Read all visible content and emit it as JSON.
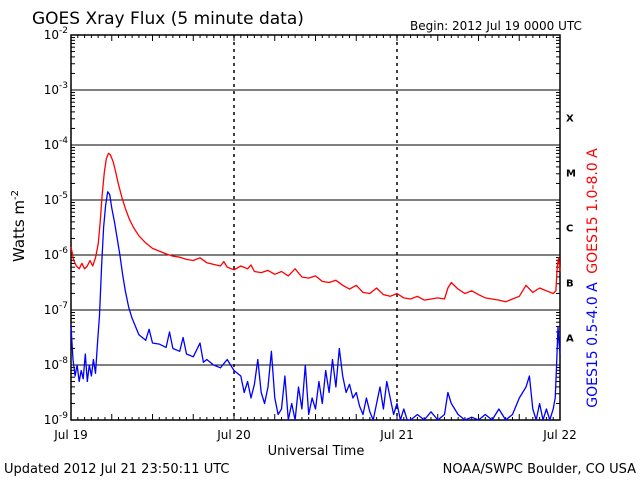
{
  "chart_data": {
    "type": "line",
    "title": "GOES Xray Flux (5 minute data)",
    "begin_label": "Begin:  2012 Jul 19 0000 UTC",
    "xlabel": "Universal Time",
    "ylabel": "Watts m",
    "ylabel_sup": "-2",
    "y_scale": "log",
    "ylim": [
      1e-09,
      0.01
    ],
    "xlim": [
      0,
      72
    ],
    "x_unit": "hours since 2012 Jul 19 0000 UTC",
    "x_ticks": [
      {
        "x": 0,
        "label": "Jul 19"
      },
      {
        "x": 24,
        "label": "Jul 20"
      },
      {
        "x": 48,
        "label": "Jul 21"
      },
      {
        "x": 72,
        "label": "Jul 22"
      }
    ],
    "y_ticks": [
      {
        "exp": -9,
        "base": "10",
        "sup": "-9"
      },
      {
        "exp": -8,
        "base": "10",
        "sup": "-8"
      },
      {
        "exp": -7,
        "base": "10",
        "sup": "-7"
      },
      {
        "exp": -6,
        "base": "10",
        "sup": "-6"
      },
      {
        "exp": -5,
        "base": "10",
        "sup": "-5"
      },
      {
        "exp": -4,
        "base": "10",
        "sup": "-4"
      },
      {
        "exp": -3,
        "base": "10",
        "sup": "-3"
      },
      {
        "exp": -2,
        "base": "10",
        "sup": "-2"
      }
    ],
    "flare_classes": [
      {
        "label": "A",
        "exp": -7.5
      },
      {
        "label": "B",
        "exp": -6.5
      },
      {
        "label": "C",
        "exp": -5.5
      },
      {
        "label": "M",
        "exp": -4.5
      },
      {
        "label": "X",
        "exp": -3.5
      }
    ],
    "series": [
      {
        "name": "GOES15 1.0-8.0 A",
        "color": "#ff0000",
        "points": [
          [
            0.0,
            -5.85
          ],
          [
            0.4,
            -6.1
          ],
          [
            0.8,
            -6.2
          ],
          [
            1.2,
            -6.25
          ],
          [
            1.6,
            -6.15
          ],
          [
            2.0,
            -6.25
          ],
          [
            2.4,
            -6.2
          ],
          [
            2.8,
            -6.1
          ],
          [
            3.2,
            -6.2
          ],
          [
            3.6,
            -6.05
          ],
          [
            4.0,
            -5.8
          ],
          [
            4.3,
            -5.4
          ],
          [
            4.6,
            -4.9
          ],
          [
            4.9,
            -4.5
          ],
          [
            5.2,
            -4.25
          ],
          [
            5.5,
            -4.15
          ],
          [
            5.8,
            -4.18
          ],
          [
            6.2,
            -4.3
          ],
          [
            6.6,
            -4.5
          ],
          [
            7.0,
            -4.72
          ],
          [
            7.5,
            -4.95
          ],
          [
            8.0,
            -5.15
          ],
          [
            8.6,
            -5.35
          ],
          [
            9.2,
            -5.5
          ],
          [
            10.0,
            -5.65
          ],
          [
            11.0,
            -5.78
          ],
          [
            12.0,
            -5.88
          ],
          [
            13.0,
            -5.93
          ],
          [
            14.0,
            -5.98
          ],
          [
            15.0,
            -6.02
          ],
          [
            16.0,
            -6.04
          ],
          [
            17.0,
            -6.08
          ],
          [
            18.0,
            -6.1
          ],
          [
            19.0,
            -6.05
          ],
          [
            20.0,
            -6.14
          ],
          [
            21.0,
            -6.17
          ],
          [
            22.0,
            -6.2
          ],
          [
            22.5,
            -6.12
          ],
          [
            23.0,
            -6.22
          ],
          [
            24.0,
            -6.27
          ],
          [
            25.0,
            -6.2
          ],
          [
            26.0,
            -6.25
          ],
          [
            26.5,
            -6.18
          ],
          [
            27.0,
            -6.3
          ],
          [
            28.0,
            -6.32
          ],
          [
            29.0,
            -6.28
          ],
          [
            30.0,
            -6.35
          ],
          [
            31.0,
            -6.3
          ],
          [
            32.0,
            -6.38
          ],
          [
            33.0,
            -6.25
          ],
          [
            34.0,
            -6.4
          ],
          [
            35.0,
            -6.42
          ],
          [
            36.0,
            -6.38
          ],
          [
            37.0,
            -6.48
          ],
          [
            38.0,
            -6.5
          ],
          [
            39.0,
            -6.46
          ],
          [
            40.0,
            -6.55
          ],
          [
            41.0,
            -6.62
          ],
          [
            42.0,
            -6.55
          ],
          [
            43.0,
            -6.68
          ],
          [
            44.0,
            -6.7
          ],
          [
            45.0,
            -6.6
          ],
          [
            46.0,
            -6.72
          ],
          [
            47.0,
            -6.75
          ],
          [
            48.0,
            -6.7
          ],
          [
            49.0,
            -6.78
          ],
          [
            50.0,
            -6.8
          ],
          [
            51.0,
            -6.75
          ],
          [
            52.0,
            -6.82
          ],
          [
            53.0,
            -6.8
          ],
          [
            54.0,
            -6.78
          ],
          [
            55.0,
            -6.8
          ],
          [
            55.5,
            -6.6
          ],
          [
            56.0,
            -6.5
          ],
          [
            57.0,
            -6.62
          ],
          [
            58.0,
            -6.7
          ],
          [
            59.0,
            -6.65
          ],
          [
            60.0,
            -6.72
          ],
          [
            61.0,
            -6.78
          ],
          [
            62.0,
            -6.8
          ],
          [
            63.0,
            -6.82
          ],
          [
            64.0,
            -6.85
          ],
          [
            65.0,
            -6.8
          ],
          [
            66.0,
            -6.75
          ],
          [
            67.0,
            -6.55
          ],
          [
            68.0,
            -6.68
          ],
          [
            69.0,
            -6.6
          ],
          [
            70.0,
            -6.65
          ],
          [
            71.0,
            -6.7
          ],
          [
            71.4,
            -6.65
          ],
          [
            71.6,
            -6.2
          ],
          [
            71.8,
            -6.05
          ],
          [
            72.0,
            -6.3
          ]
        ]
      },
      {
        "name": "GOES15 0.5-4.0 A",
        "color": "#0000ff",
        "points": [
          [
            0.0,
            -7.3
          ],
          [
            0.3,
            -7.9
          ],
          [
            0.6,
            -8.2
          ],
          [
            0.9,
            -8.0
          ],
          [
            1.2,
            -8.3
          ],
          [
            1.5,
            -8.1
          ],
          [
            1.8,
            -8.25
          ],
          [
            2.1,
            -7.8
          ],
          [
            2.4,
            -8.3
          ],
          [
            2.7,
            -8.0
          ],
          [
            3.0,
            -8.2
          ],
          [
            3.3,
            -7.9
          ],
          [
            3.6,
            -8.15
          ],
          [
            3.9,
            -7.6
          ],
          [
            4.2,
            -7.1
          ],
          [
            4.5,
            -6.2
          ],
          [
            4.8,
            -5.5
          ],
          [
            5.1,
            -5.1
          ],
          [
            5.4,
            -4.85
          ],
          [
            5.7,
            -4.9
          ],
          [
            6.0,
            -5.15
          ],
          [
            6.4,
            -5.4
          ],
          [
            6.8,
            -5.7
          ],
          [
            7.2,
            -6.0
          ],
          [
            7.6,
            -6.35
          ],
          [
            8.0,
            -6.65
          ],
          [
            8.5,
            -6.95
          ],
          [
            9.0,
            -7.15
          ],
          [
            9.5,
            -7.3
          ],
          [
            10.0,
            -7.45
          ],
          [
            11.0,
            -7.55
          ],
          [
            11.5,
            -7.35
          ],
          [
            12.0,
            -7.6
          ],
          [
            13.0,
            -7.62
          ],
          [
            14.0,
            -7.68
          ],
          [
            14.5,
            -7.4
          ],
          [
            15.0,
            -7.7
          ],
          [
            16.0,
            -7.75
          ],
          [
            16.5,
            -7.5
          ],
          [
            17.0,
            -7.8
          ],
          [
            18.0,
            -7.85
          ],
          [
            19.0,
            -7.6
          ],
          [
            19.5,
            -7.95
          ],
          [
            20.0,
            -7.9
          ],
          [
            21.0,
            -8.0
          ],
          [
            22.0,
            -8.05
          ],
          [
            23.0,
            -7.9
          ],
          [
            24.0,
            -8.1
          ],
          [
            25.0,
            -8.2
          ],
          [
            25.5,
            -8.5
          ],
          [
            26.0,
            -8.3
          ],
          [
            26.5,
            -8.6
          ],
          [
            27.0,
            -8.35
          ],
          [
            27.5,
            -7.9
          ],
          [
            28.0,
            -8.5
          ],
          [
            28.5,
            -8.7
          ],
          [
            29.0,
            -8.4
          ],
          [
            29.5,
            -7.75
          ],
          [
            30.0,
            -8.6
          ],
          [
            30.5,
            -8.9
          ],
          [
            31.0,
            -8.8
          ],
          [
            31.5,
            -8.2
          ],
          [
            32.0,
            -9.0
          ],
          [
            32.5,
            -8.7
          ],
          [
            33.0,
            -9.0
          ],
          [
            33.5,
            -8.4
          ],
          [
            34.0,
            -8.8
          ],
          [
            34.5,
            -8.0
          ],
          [
            35.0,
            -8.9
          ],
          [
            35.5,
            -8.6
          ],
          [
            36.0,
            -8.8
          ],
          [
            36.5,
            -8.3
          ],
          [
            37.0,
            -8.7
          ],
          [
            37.5,
            -8.1
          ],
          [
            38.0,
            -8.5
          ],
          [
            38.5,
            -7.9
          ],
          [
            39.0,
            -8.4
          ],
          [
            39.5,
            -7.7
          ],
          [
            40.0,
            -8.2
          ],
          [
            40.5,
            -8.5
          ],
          [
            41.0,
            -8.35
          ],
          [
            41.5,
            -8.6
          ],
          [
            42.0,
            -8.5
          ],
          [
            42.5,
            -8.75
          ],
          [
            43.0,
            -8.9
          ],
          [
            43.5,
            -8.6
          ],
          [
            44.0,
            -8.85
          ],
          [
            44.5,
            -9.0
          ],
          [
            45.0,
            -8.7
          ],
          [
            45.5,
            -8.4
          ],
          [
            46.0,
            -8.8
          ],
          [
            46.5,
            -8.3
          ],
          [
            47.0,
            -8.6
          ],
          [
            47.5,
            -8.9
          ],
          [
            48.0,
            -8.7
          ],
          [
            48.5,
            -9.0
          ],
          [
            49.0,
            -8.8
          ],
          [
            49.5,
            -9.0
          ],
          [
            50.0,
            -9.0
          ],
          [
            51.0,
            -8.9
          ],
          [
            52.0,
            -9.0
          ],
          [
            53.0,
            -8.85
          ],
          [
            54.0,
            -9.0
          ],
          [
            55.0,
            -8.9
          ],
          [
            55.5,
            -8.5
          ],
          [
            56.0,
            -8.7
          ],
          [
            57.0,
            -8.9
          ],
          [
            58.0,
            -9.0
          ],
          [
            59.0,
            -8.95
          ],
          [
            60.0,
            -9.0
          ],
          [
            61.0,
            -8.9
          ],
          [
            62.0,
            -9.0
          ],
          [
            63.0,
            -8.8
          ],
          [
            64.0,
            -9.0
          ],
          [
            65.0,
            -8.9
          ],
          [
            66.0,
            -8.6
          ],
          [
            67.0,
            -8.4
          ],
          [
            67.5,
            -8.2
          ],
          [
            68.0,
            -8.8
          ],
          [
            68.5,
            -9.0
          ],
          [
            69.0,
            -8.7
          ],
          [
            69.5,
            -9.0
          ],
          [
            70.0,
            -8.8
          ],
          [
            70.5,
            -9.0
          ],
          [
            71.0,
            -8.8
          ],
          [
            71.3,
            -8.6
          ],
          [
            71.5,
            -8.0
          ],
          [
            71.7,
            -7.3
          ],
          [
            71.85,
            -7.6
          ],
          [
            72.0,
            -7.8
          ]
        ]
      }
    ]
  },
  "footer": {
    "updated": "Updated 2012 Jul 21 23:50:11 UTC",
    "source": "NOAA/SWPC Boulder, CO USA"
  }
}
